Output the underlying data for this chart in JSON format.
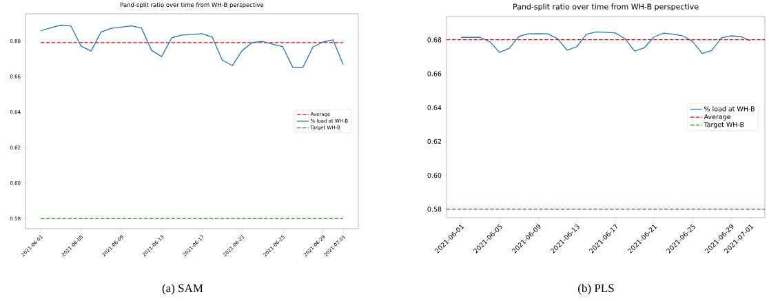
{
  "chart_data": [
    {
      "type": "line",
      "title": "Pand-split ratio over time from WH-B perspective",
      "x": [
        "2021-06-01",
        "2021-06-02",
        "2021-06-03",
        "2021-06-04",
        "2021-06-05",
        "2021-06-06",
        "2021-06-07",
        "2021-06-08",
        "2021-06-09",
        "2021-06-10",
        "2021-06-11",
        "2021-06-12",
        "2021-06-13",
        "2021-06-14",
        "2021-06-15",
        "2021-06-16",
        "2021-06-17",
        "2021-06-18",
        "2021-06-19",
        "2021-06-20",
        "2021-06-21",
        "2021-06-22",
        "2021-06-23",
        "2021-06-24",
        "2021-06-25",
        "2021-06-26",
        "2021-06-27",
        "2021-06-28",
        "2021-06-29",
        "2021-06-30",
        "2021-07-01"
      ],
      "series": [
        {
          "name": "Average",
          "color": "#ff3030",
          "line_style": "dashed",
          "x": [
            "2021-06-01",
            "2021-07-01"
          ],
          "values": [
            0.6791,
            0.6791
          ]
        },
        {
          "name": "% load at WH-B",
          "color": "#1f77b4",
          "line_style": "solid",
          "values": [
            0.6857,
            0.6874,
            0.6889,
            0.6885,
            0.6771,
            0.6743,
            0.6851,
            0.6871,
            0.6878,
            0.6885,
            0.6873,
            0.6747,
            0.6712,
            0.6818,
            0.6833,
            0.6836,
            0.6841,
            0.6823,
            0.6693,
            0.6661,
            0.6747,
            0.6791,
            0.6797,
            0.6782,
            0.6768,
            0.6651,
            0.6651,
            0.6766,
            0.6794,
            0.6806,
            0.6667
          ]
        },
        {
          "name": "Target WH-B",
          "color": "#2ca02c",
          "line_style": "dashed",
          "x": [
            "2021-06-01",
            "2021-07-01"
          ],
          "values": [
            0.58,
            0.58
          ]
        }
      ],
      "xlim": [
        "2021-05-30T12:00",
        "2021-07-02T12:00"
      ],
      "ylim": [
        0.5743,
        0.6953
      ],
      "xticks": [
        "2021-06-01",
        "2021-06-05",
        "2021-06-09",
        "2021-06-13",
        "2021-06-17",
        "2021-06-21",
        "2021-06-25",
        "2021-06-29",
        "2021-07-01"
      ],
      "yticks": [
        {
          "value": 0.58,
          "label": "0.58"
        },
        {
          "value": 0.6,
          "label": "0.60"
        },
        {
          "value": 0.62,
          "label": "0.62"
        },
        {
          "value": 0.64,
          "label": "0.64"
        },
        {
          "value": 0.66,
          "label": "0.66"
        },
        {
          "value": 0.68,
          "label": "0.68"
        }
      ],
      "legend": "center right",
      "annotations": [
        "(a) SAM"
      ]
    },
    {
      "type": "line",
      "title": "Pand-split ratio over time from WH-B perspective",
      "x": [
        "2021-06-01",
        "2021-06-02",
        "2021-06-03",
        "2021-06-04",
        "2021-06-05",
        "2021-06-06",
        "2021-06-07",
        "2021-06-08",
        "2021-06-09",
        "2021-06-10",
        "2021-06-11",
        "2021-06-12",
        "2021-06-13",
        "2021-06-14",
        "2021-06-15",
        "2021-06-16",
        "2021-06-17",
        "2021-06-18",
        "2021-06-19",
        "2021-06-20",
        "2021-06-21",
        "2021-06-22",
        "2021-06-23",
        "2021-06-24",
        "2021-06-25",
        "2021-06-26",
        "2021-06-27",
        "2021-06-28",
        "2021-06-29",
        "2021-06-30",
        "2021-07-01"
      ],
      "series": [
        {
          "name": "% load at WH-B",
          "color": "#1f77b4",
          "line_style": "solid",
          "values": [
            0.6815,
            0.6815,
            0.6815,
            0.6789,
            0.6726,
            0.675,
            0.682,
            0.6836,
            0.6837,
            0.6836,
            0.6807,
            0.6739,
            0.676,
            0.6833,
            0.6847,
            0.6845,
            0.6841,
            0.6807,
            0.6734,
            0.6753,
            0.6817,
            0.684,
            0.6834,
            0.6824,
            0.6791,
            0.672,
            0.6738,
            0.6812,
            0.6824,
            0.6819,
            0.6795
          ]
        }
      ],
      "ref_lines": [
        {
          "axis": "y",
          "value": 0.6801,
          "label": "Average",
          "color": "#ff0000",
          "line_style": "dashed"
        },
        {
          "axis": "y",
          "value": 0.58,
          "label": "Target WH-B",
          "color": "#008000",
          "line_style": "dashed"
        }
      ],
      "xlim": [
        "2021-05-30T12:00",
        "2021-07-02T12:00"
      ],
      "ylim": [
        0.575,
        0.6938
      ],
      "xticks": [
        "2021-06-01",
        "2021-06-05",
        "2021-06-09",
        "2021-06-13",
        "2021-06-17",
        "2021-06-21",
        "2021-06-25",
        "2021-06-29",
        "2021-07-01"
      ],
      "yticks": [
        {
          "value": 0.58,
          "label": "0.58"
        },
        {
          "value": 0.6,
          "label": "0.60"
        },
        {
          "value": 0.62,
          "label": "0.62"
        },
        {
          "value": 0.64,
          "label": "0.64"
        },
        {
          "value": 0.66,
          "label": "0.66"
        },
        {
          "value": 0.68,
          "label": "0.68"
        }
      ],
      "legend": "center right",
      "annotations": [
        "(b) PLS"
      ]
    }
  ]
}
